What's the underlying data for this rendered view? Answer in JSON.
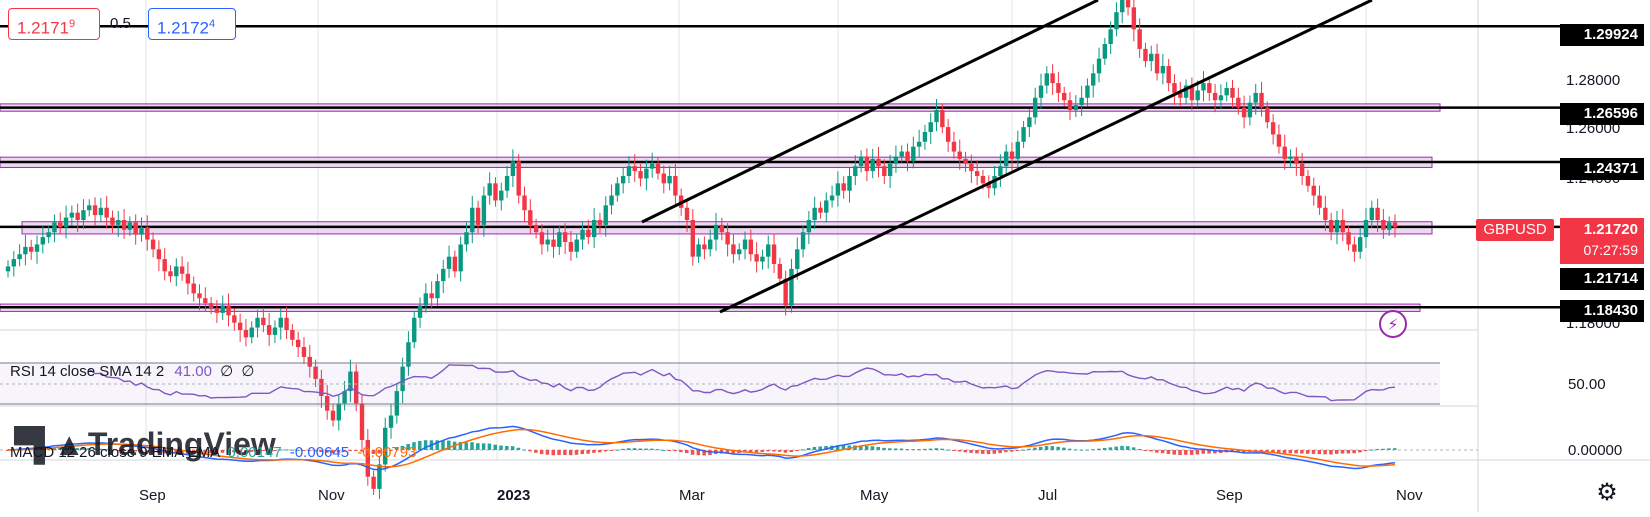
{
  "chart_data": [
    {
      "type": "candlestick",
      "symbol": "GBPUSD",
      "last_price": "1.21720",
      "countdown": "07:27:59",
      "quote": {
        "bid": "1.2171",
        "bid_sup": "9",
        "spread": "0.5",
        "ask": "1.2172",
        "ask_sup": "4"
      },
      "x_ticks": [
        "Sep",
        "Nov",
        "2023",
        "Mar",
        "May",
        "Jul",
        "Sep",
        "Nov"
      ],
      "y_axis_labels": [
        "1.28000",
        "1.26000",
        "1.24000",
        "1.18000"
      ],
      "ylim": [
        1.175,
        1.31
      ],
      "level_tags": [
        {
          "label": "1.29924",
          "value": 1.29924
        },
        {
          "label": "1.26596",
          "value": 1.26596
        },
        {
          "label": "1.24371",
          "value": 1.24371
        },
        {
          "label": "1.21714",
          "value": 1.21714
        },
        {
          "label": "1.18430",
          "value": 1.1843
        }
      ],
      "horizontal_lines": [
        1.29924,
        1.26596,
        1.24371,
        1.2172,
        1.1843
      ],
      "zones": [
        [
          1.2645,
          1.2675
        ],
        [
          1.2415,
          1.2457
        ],
        [
          1.2143,
          1.2193
        ],
        [
          1.1826,
          1.1856
        ]
      ],
      "closes": [
        1.201,
        1.204,
        1.206,
        1.209,
        1.207,
        1.21,
        1.213,
        1.215,
        1.219,
        1.217,
        1.221,
        1.223,
        1.22,
        1.224,
        1.226,
        1.222,
        1.225,
        1.221,
        1.218,
        1.22,
        1.216,
        1.219,
        1.214,
        1.217,
        1.212,
        1.208,
        1.204,
        1.199,
        1.197,
        1.201,
        1.198,
        1.194,
        1.19,
        1.188,
        1.186,
        1.184,
        1.182,
        1.185,
        1.181,
        1.178,
        1.175,
        1.172,
        1.176,
        1.18,
        1.177,
        1.173,
        1.176,
        1.18,
        1.175,
        1.171,
        1.168,
        1.164,
        1.16,
        1.155,
        1.148,
        1.142,
        1.138,
        1.145,
        1.15,
        1.158,
        1.145,
        1.13,
        1.115,
        1.11,
        1.12,
        1.135,
        1.14,
        1.15,
        1.16,
        1.17,
        1.18,
        1.185,
        1.19,
        1.188,
        1.195,
        1.2,
        1.205,
        1.199,
        1.21,
        1.215,
        1.225,
        1.218,
        1.23,
        1.235,
        1.228,
        1.232,
        1.238,
        1.244,
        1.23,
        1.224,
        1.218,
        1.215,
        1.21,
        1.212,
        1.209,
        1.215,
        1.211,
        1.207,
        1.212,
        1.216,
        1.213,
        1.22,
        1.218,
        1.226,
        1.23,
        1.235,
        1.238,
        1.242,
        1.24,
        1.237,
        1.241,
        1.243,
        1.239,
        1.235,
        1.238,
        1.23,
        1.225,
        1.22,
        1.205,
        1.21,
        1.208,
        1.212,
        1.218,
        1.215,
        1.21,
        1.206,
        1.208,
        1.212,
        1.206,
        1.203,
        1.205,
        1.21,
        1.202,
        1.196,
        1.185,
        1.2,
        1.208,
        1.215,
        1.22,
        1.225,
        1.223,
        1.228,
        1.23,
        1.235,
        1.232,
        1.238,
        1.242,
        1.246,
        1.24,
        1.245,
        1.242,
        1.238,
        1.243,
        1.246,
        1.248,
        1.244,
        1.25,
        1.252,
        1.256,
        1.26,
        1.265,
        1.258,
        1.252,
        1.248,
        1.245,
        1.243,
        1.24,
        1.238,
        1.235,
        1.233,
        1.238,
        1.242,
        1.248,
        1.245,
        1.252,
        1.258,
        1.262,
        1.27,
        1.275,
        1.28,
        1.276,
        1.272,
        1.269,
        1.265,
        1.267,
        1.27,
        1.275,
        1.28,
        1.286,
        1.292,
        1.298,
        1.305,
        1.313,
        1.307,
        1.298,
        1.29,
        1.285,
        1.288,
        1.28,
        1.283,
        1.276,
        1.272,
        1.27,
        1.275,
        1.269,
        1.273,
        1.276,
        1.272,
        1.269,
        1.271,
        1.274,
        1.27,
        1.266,
        1.262,
        1.268,
        1.272,
        1.266,
        1.26,
        1.255,
        1.25,
        1.245,
        1.246,
        1.243,
        1.238,
        1.234,
        1.23,
        1.225,
        1.22,
        1.215,
        1.22,
        1.215,
        1.21,
        1.207,
        1.213,
        1.22,
        1.225,
        1.22,
        1.216,
        1.219,
        1.217
      ]
    },
    {
      "type": "line",
      "label": "RSI 14 close SMA 14 2",
      "value": "41.00",
      "extra": [
        "∅",
        "∅"
      ],
      "y_axis_labels": [
        "50.00"
      ],
      "color": "#7e57c2"
    },
    {
      "type": "histogram",
      "label": "MACD 12 26 close 9 EMA EMA",
      "values": [
        "0.00147",
        "-0.00645",
        "-0.00793"
      ],
      "y_axis_labels": [
        "0.00000"
      ],
      "macd_color": "#2962ff",
      "signal_color": "#ff6d00"
    }
  ],
  "watermark": "TradingView",
  "colors": {
    "up": "#089981",
    "down": "#f23645",
    "zone": "#e1bee7",
    "zone_border": "#9c27b0",
    "last": "#f23645"
  }
}
